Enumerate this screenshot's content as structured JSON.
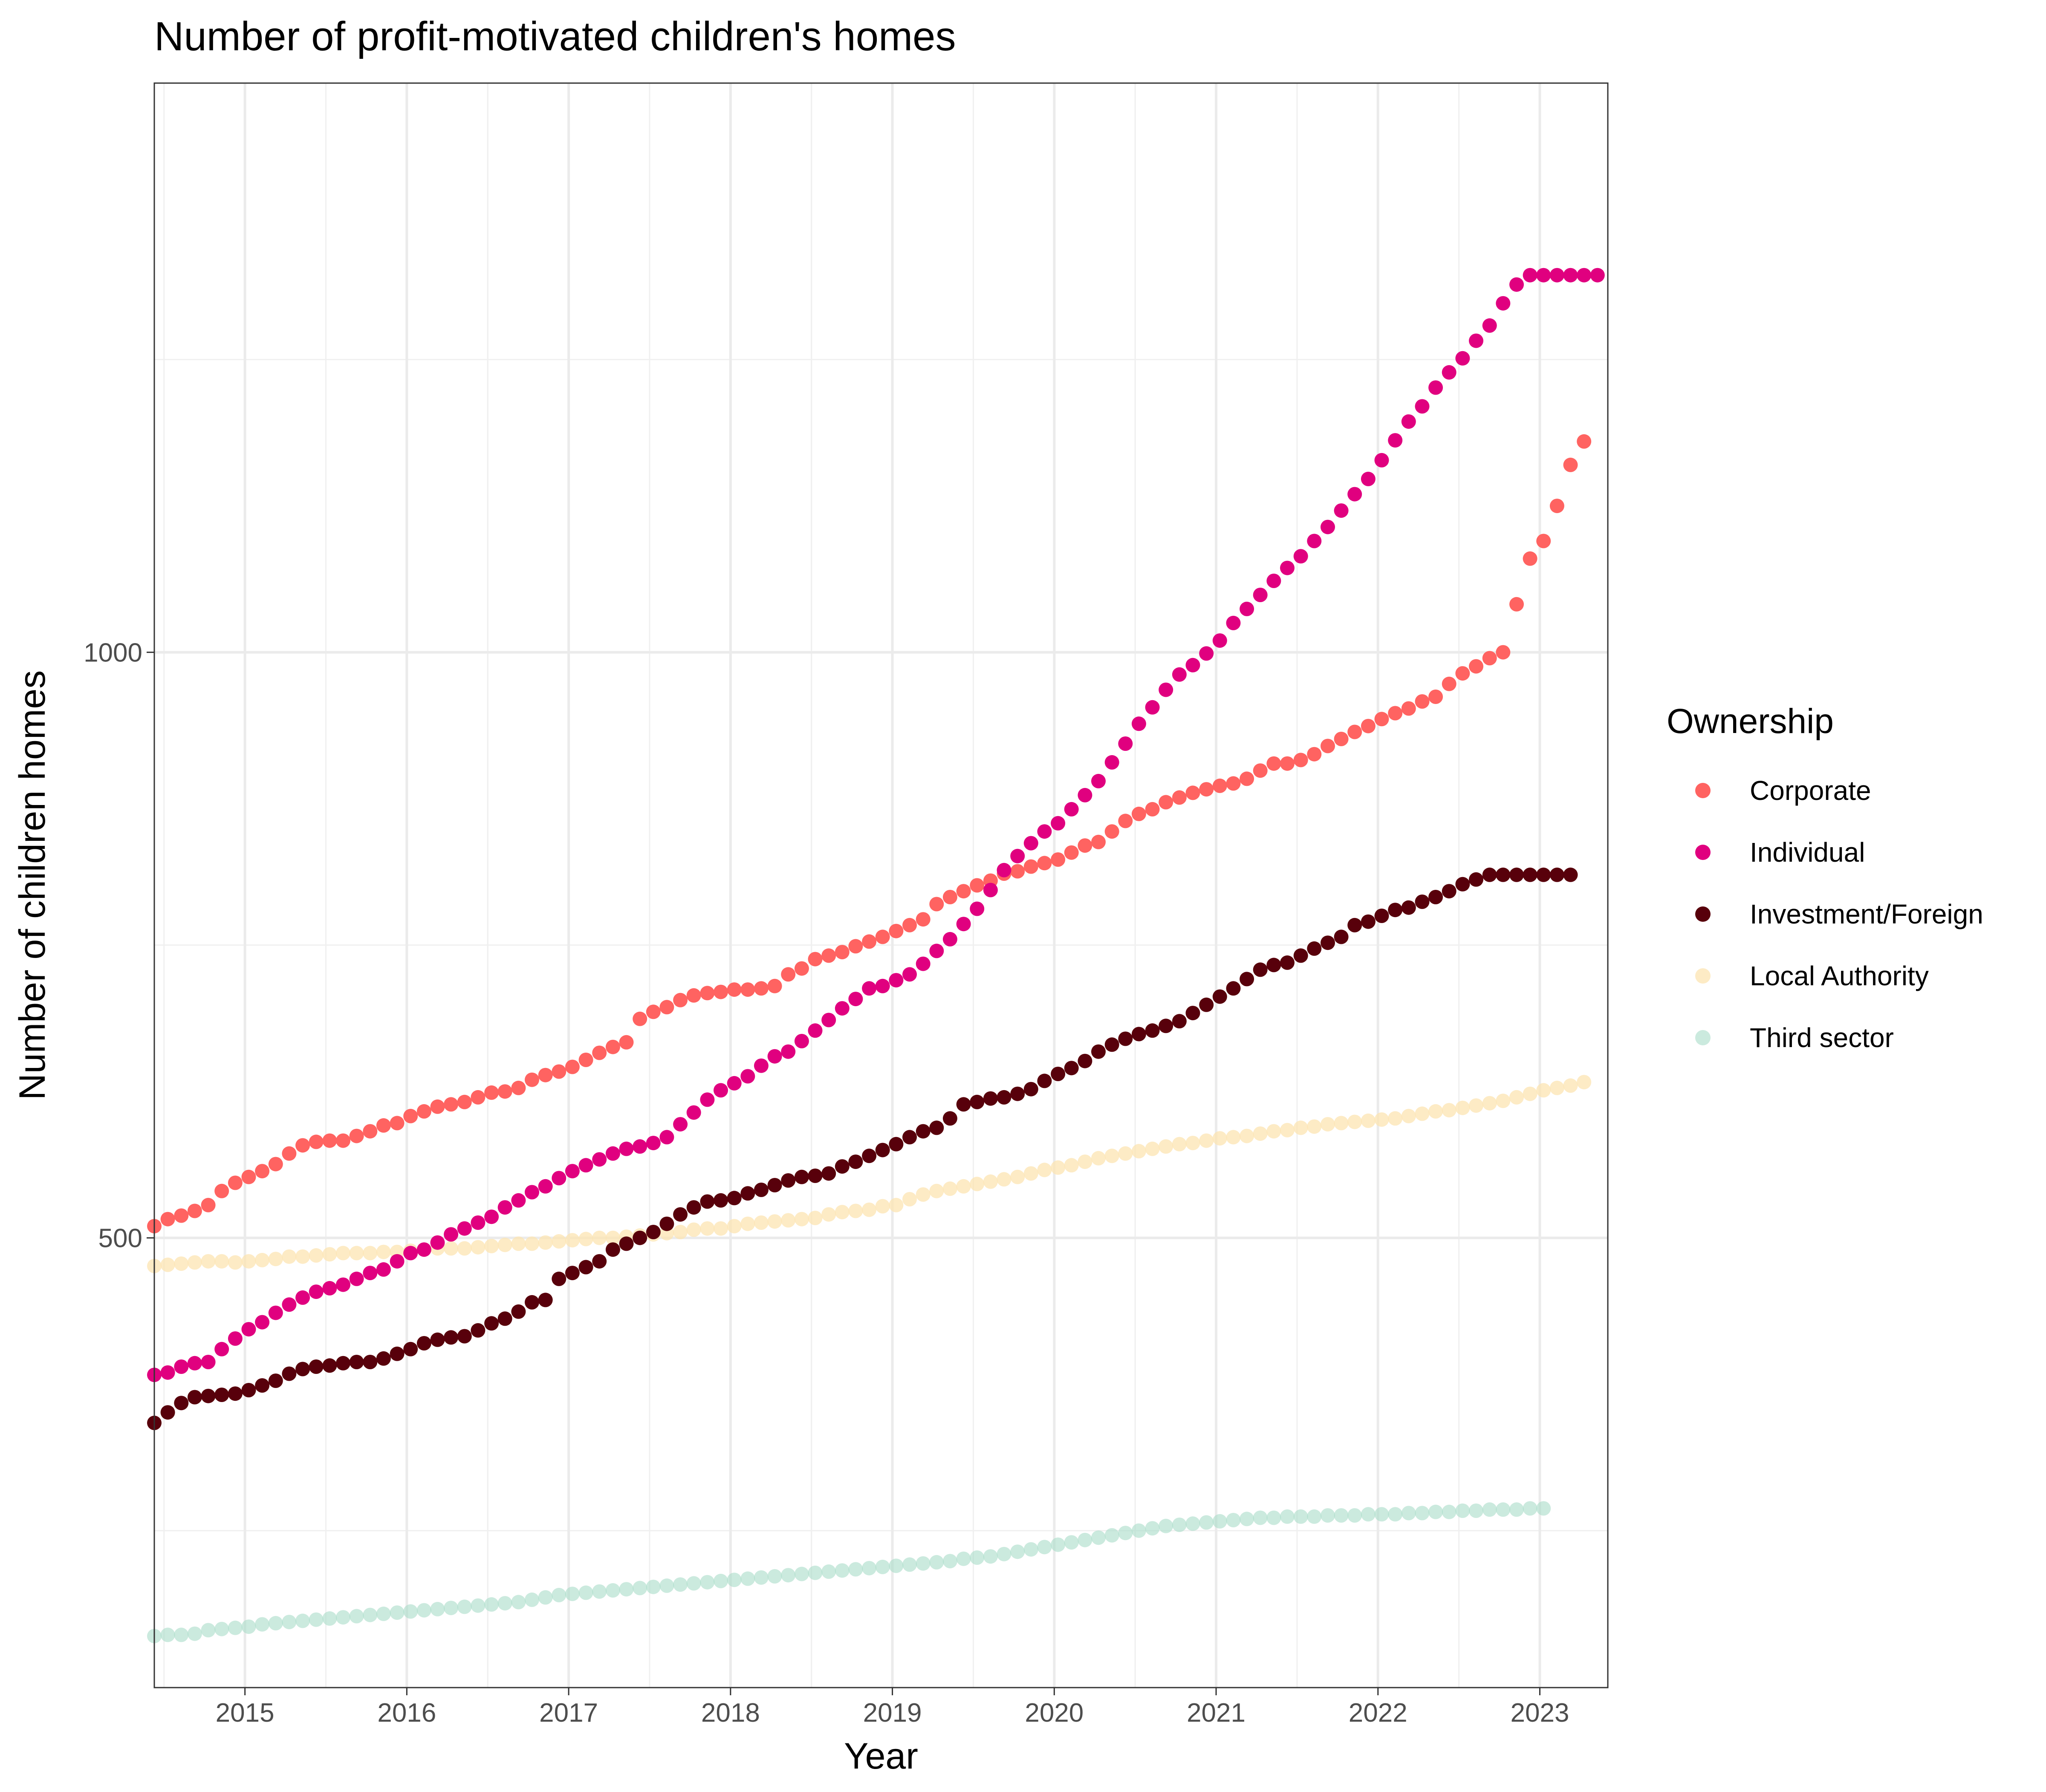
{
  "chart_data": {
    "type": "scatter",
    "title": "Number of profit-motivated children's homes",
    "xlabel": "Year",
    "ylabel": "Number of children homes",
    "xlim": [
      2014.44,
      2023.42
    ],
    "ylim": [
      116,
      1486
    ],
    "x_ticks": [
      2015,
      2016,
      2017,
      2018,
      2019,
      2020,
      2021,
      2022,
      2023
    ],
    "x_tick_labels": [
      "2015",
      "2016",
      "2017",
      "2018",
      "2019",
      "2020",
      "2021",
      "2022",
      "2023"
    ],
    "y_ticks": [
      500,
      1000
    ],
    "y_tick_labels": [
      "500",
      "1000"
    ],
    "y_minor_grid": [
      250,
      750,
      1250
    ],
    "grid": true,
    "legend": {
      "title": "Ownership",
      "position": "right"
    },
    "x_start": 2014.44,
    "x_step": 0.08333,
    "series": [
      {
        "name": "Corporate",
        "color": "#FF6361",
        "opacity": 1.0,
        "values": [
          510,
          516,
          519,
          523,
          528,
          540,
          547,
          552,
          557,
          563,
          572,
          579,
          582,
          583,
          583,
          587,
          591,
          596,
          598,
          604,
          608,
          612,
          614,
          616,
          620,
          624,
          625,
          628,
          635,
          639,
          642,
          646,
          652,
          658,
          663,
          667,
          687,
          693,
          697,
          703,
          707,
          709,
          710,
          712,
          712,
          713,
          715,
          725,
          730,
          738,
          741,
          744,
          749,
          753,
          757,
          762,
          767,
          772,
          785,
          791,
          796,
          801,
          805,
          811,
          813,
          817,
          820,
          823,
          829,
          835,
          838,
          847,
          856,
          862,
          866,
          872,
          876,
          880,
          883,
          886,
          888,
          892,
          899,
          905,
          905,
          908,
          913,
          920,
          926,
          932,
          937,
          943,
          948,
          952,
          958,
          962,
          973,
          982,
          988,
          995,
          1000,
          1041,
          1080,
          1095,
          1125,
          1160,
          1180
        ]
      },
      {
        "name": "Individual",
        "color": "#E0007F",
        "opacity": 1.0,
        "values": [
          383,
          385,
          390,
          393,
          394,
          405,
          414,
          422,
          428,
          436,
          443,
          449,
          454,
          457,
          460,
          465,
          470,
          473,
          480,
          487,
          490,
          496,
          503,
          508,
          513,
          518,
          526,
          532,
          539,
          544,
          551,
          557,
          562,
          567,
          572,
          576,
          578,
          581,
          586,
          597,
          607,
          618,
          626,
          632,
          638,
          647,
          655,
          659,
          668,
          677,
          686,
          696,
          704,
          713,
          715,
          720,
          725,
          734,
          745,
          755,
          768,
          781,
          797,
          814,
          826,
          837,
          847,
          854,
          866,
          878,
          890,
          906,
          922,
          939,
          953,
          968,
          981,
          989,
          999,
          1010,
          1025,
          1037,
          1049,
          1061,
          1072,
          1082,
          1095,
          1107,
          1121,
          1135,
          1148,
          1164,
          1181,
          1197,
          1210,
          1226,
          1239,
          1251,
          1266,
          1279,
          1298,
          1314,
          1322,
          1322,
          1322,
          1322,
          1322,
          1322,
          1322,
          1322
        ]
      },
      {
        "name": "Investment/Foreign",
        "color": "#58000B",
        "opacity": 1.0,
        "values": [
          342,
          351,
          359,
          364,
          365,
          366,
          367,
          370,
          374,
          378,
          384,
          388,
          390,
          391,
          393,
          394,
          394,
          397,
          401,
          405,
          410,
          413,
          415,
          416,
          421,
          427,
          431,
          437,
          445,
          447,
          465,
          470,
          475,
          480,
          490,
          495,
          500,
          505,
          512,
          520,
          526,
          531,
          532,
          534,
          538,
          541,
          545,
          549,
          552,
          553,
          555,
          561,
          565,
          570,
          575,
          580,
          586,
          591,
          594,
          602,
          614,
          616,
          619,
          620,
          623,
          627,
          634,
          640,
          645,
          651,
          659,
          665,
          670,
          674,
          677,
          681,
          685,
          692,
          699,
          706,
          713,
          721,
          729,
          733,
          735,
          741,
          747,
          752,
          757,
          767,
          770,
          775,
          780,
          782,
          787,
          791,
          796,
          802,
          806,
          810,
          810,
          810,
          810,
          810,
          810,
          810
        ]
      },
      {
        "name": "Local Authority",
        "color": "#FCE4B2",
        "opacity": 0.75,
        "values": [
          476,
          477,
          478,
          479,
          480,
          480,
          479,
          480,
          481,
          482,
          484,
          484,
          485,
          486,
          487,
          487,
          487,
          488,
          488,
          489,
          490,
          491,
          491,
          491,
          492,
          493,
          494,
          495,
          495,
          496,
          497,
          498,
          499,
          500,
          500,
          501,
          502,
          503,
          504,
          505,
          507,
          508,
          508,
          510,
          512,
          513,
          514,
          515,
          516,
          517,
          520,
          522,
          523,
          524,
          527,
          528,
          533,
          537,
          540,
          542,
          544,
          546,
          548,
          550,
          552,
          555,
          558,
          560,
          562,
          565,
          568,
          570,
          572,
          574,
          576,
          578,
          580,
          581,
          583,
          585,
          586,
          587,
          589,
          591,
          592,
          594,
          595,
          597,
          598,
          599,
          600,
          601,
          602,
          604,
          606,
          608,
          609,
          611,
          613,
          615,
          617,
          620,
          623,
          626,
          628,
          630,
          633
        ]
      },
      {
        "name": "Third sector",
        "color": "#A8DCC8",
        "opacity": 0.6,
        "values": [
          160,
          161,
          161,
          162,
          165,
          166,
          167,
          168,
          170,
          171,
          172,
          173,
          174,
          175,
          176,
          177,
          178,
          179,
          180,
          181,
          182,
          183,
          184,
          185,
          186,
          187,
          188,
          189,
          191,
          193,
          195,
          196,
          197,
          198,
          199,
          200,
          201,
          202,
          203,
          204,
          205,
          206,
          207,
          208,
          209,
          210,
          211,
          212,
          213,
          214,
          215,
          216,
          217,
          218,
          219,
          220,
          221,
          222,
          223,
          224,
          226,
          227,
          228,
          230,
          232,
          234,
          236,
          238,
          240,
          242,
          244,
          246,
          248,
          250,
          252,
          254,
          255,
          256,
          257,
          258,
          259,
          260,
          261,
          261,
          262,
          262,
          262,
          263,
          263,
          263,
          264,
          264,
          264,
          265,
          265,
          266,
          266,
          267,
          267,
          268,
          268,
          268,
          269,
          269
        ]
      }
    ]
  }
}
